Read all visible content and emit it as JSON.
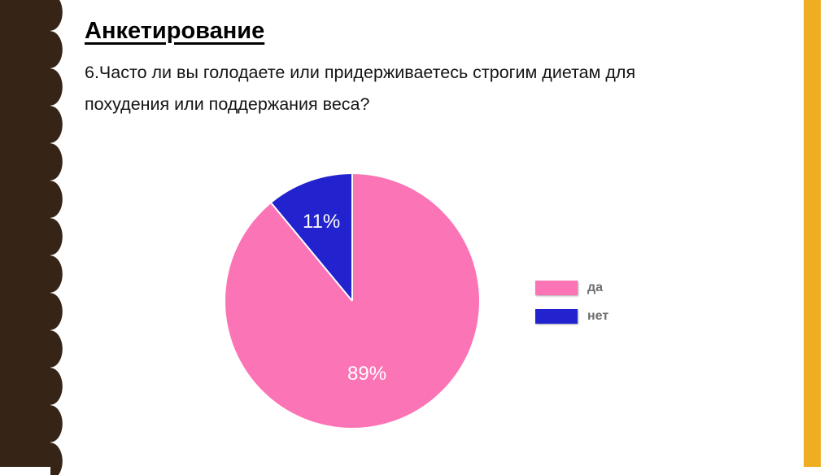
{
  "slide": {
    "title": "Анкетирование",
    "question_line1": "6.Часто ли вы голодаете или придерживаетесь строгим диетам для",
    "question_line2": "похудения или поддержания веса?"
  },
  "chart_data": {
    "type": "pie",
    "title": "",
    "labels": [
      "да",
      "нет"
    ],
    "values": [
      89,
      11
    ],
    "unit": "%",
    "colors": [
      "#FB74B5",
      "#2222CE"
    ],
    "data_labels": [
      "89%",
      "11%"
    ],
    "legend_position": "right",
    "start_angle_deg": 0,
    "direction": "clockwise"
  },
  "theme": {
    "left_bar_color": "#362517",
    "accent_stripe_color": "#EFAD21",
    "legend_text_color": "#6e6e6e",
    "background_color": "#ffffff"
  }
}
